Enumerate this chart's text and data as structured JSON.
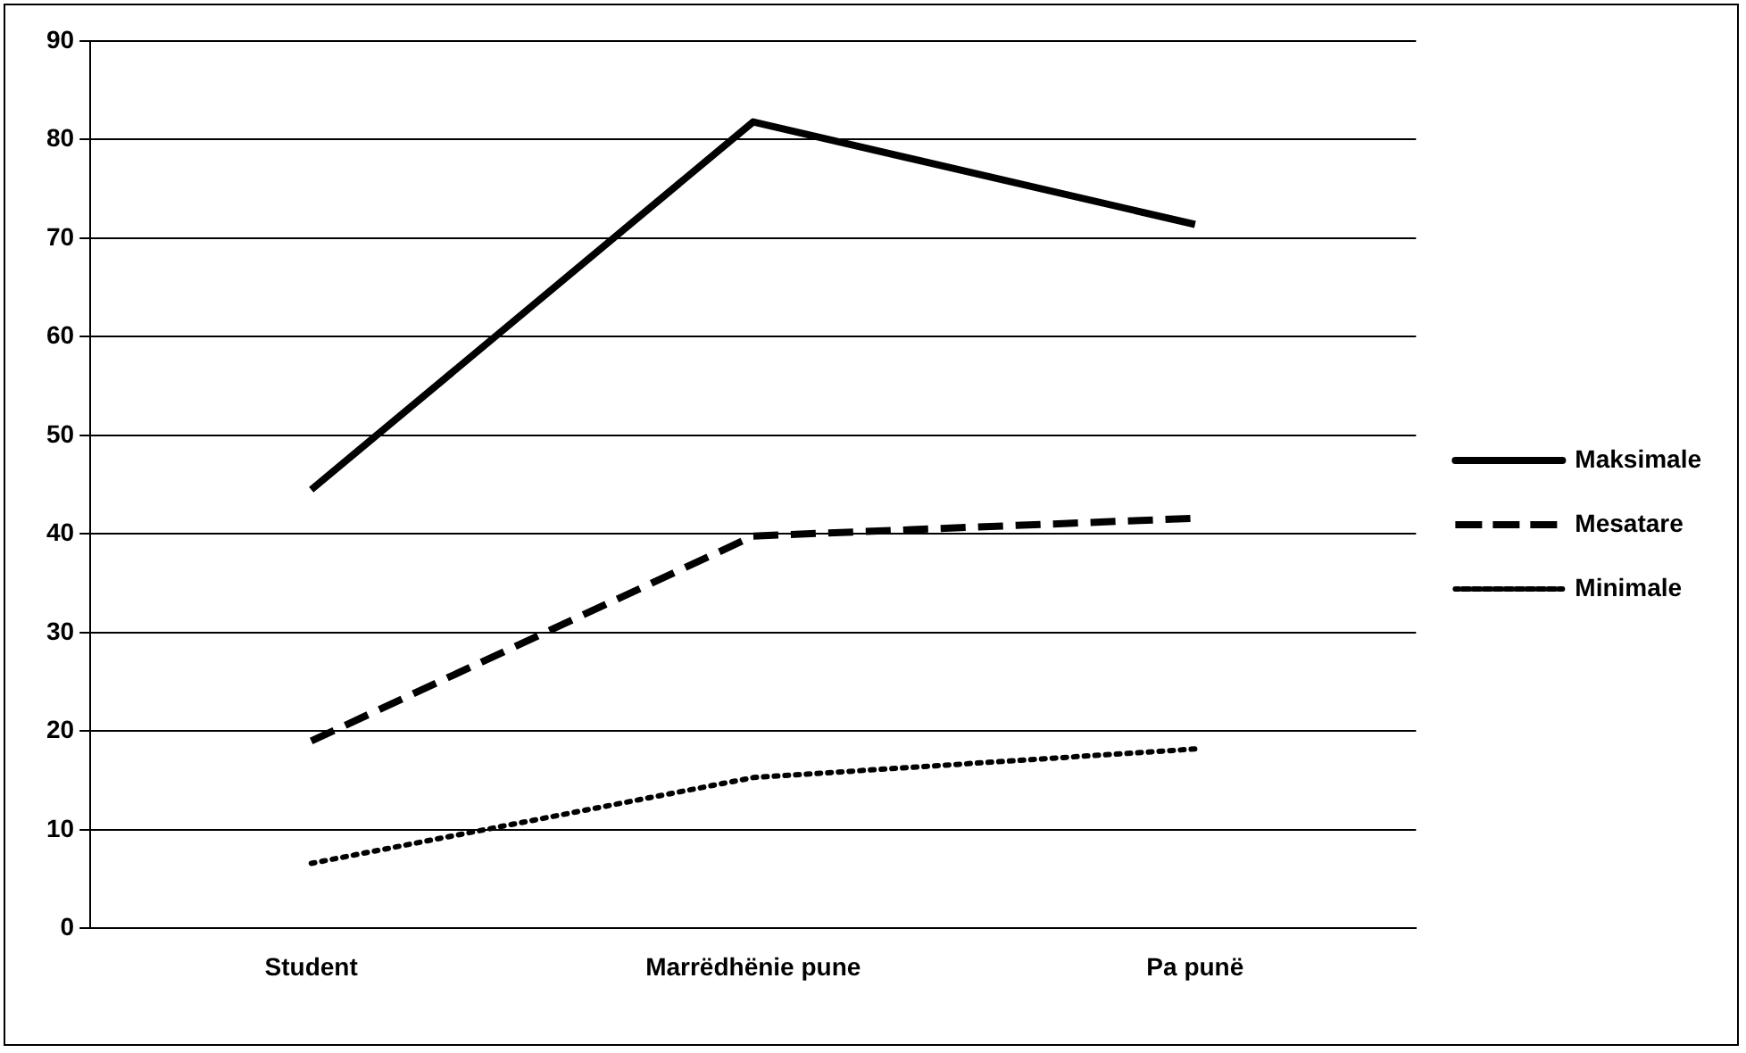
{
  "chart_data": {
    "type": "line",
    "categories": [
      "Student",
      "Marrëdhënie pune",
      "Pa punë"
    ],
    "series": [
      {
        "name": "Maksimale",
        "color": "#000000",
        "line_style": "solid",
        "values": [
          44.5,
          81.8,
          71.4
        ]
      },
      {
        "name": "Mesatare",
        "color": "#000000",
        "line_style": "dashed",
        "values": [
          19,
          39.8,
          41.6
        ]
      },
      {
        "name": "Minimale",
        "color": "#000000",
        "line_style": "dotted",
        "values": [
          6.6,
          15.3,
          18.2
        ]
      }
    ],
    "ylim": [
      0,
      90
    ],
    "yticks": [
      0,
      10,
      20,
      30,
      40,
      50,
      60,
      70,
      80,
      90
    ],
    "grid": "y",
    "legend": "right",
    "marker": "none"
  }
}
